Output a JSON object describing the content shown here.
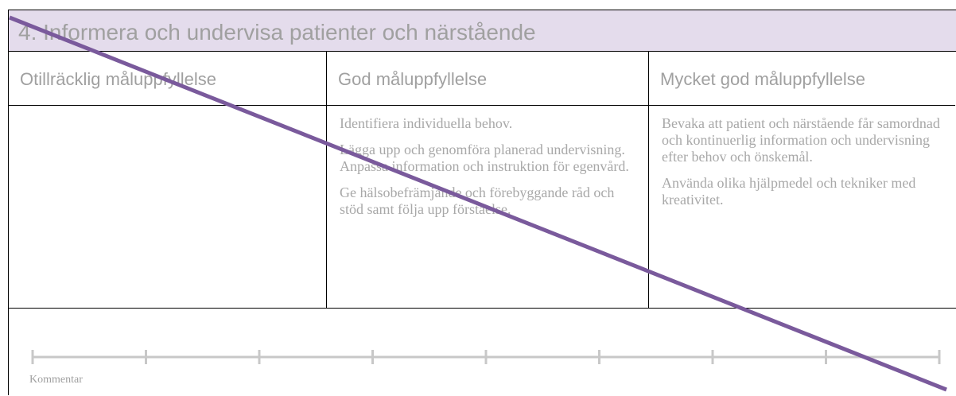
{
  "title": "4. Informera och undervisa patienter och närstående",
  "columns": [
    {
      "heading": "Otillräcklig måluppfyllelse",
      "paragraphs": []
    },
    {
      "heading": "God måluppfyllelse",
      "paragraphs": [
        "Identifiera individuella behov.",
        "Lägga upp och genomföra planerad undervisning. Anpassa information och instruktion för egenvård.",
        "Ge hälsobefrämjande och förebyggande råd och stöd samt följa upp förståelse."
      ]
    },
    {
      "heading": "Mycket god måluppfyllelse",
      "paragraphs": [
        "Bevaka att patient och närstående får samordnad och kontinuerlig information och undervisning efter behov och önskemål.",
        "Använda olika hjälpmedel och tekniker med kreativitet."
      ]
    }
  ],
  "comment_label": "Kommentar"
}
